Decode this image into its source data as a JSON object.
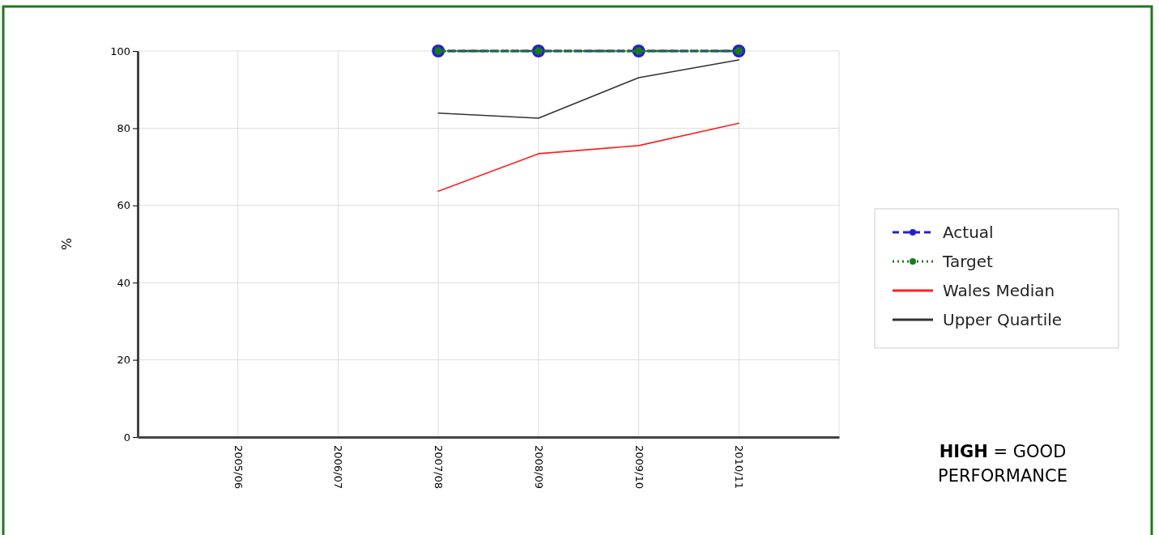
{
  "chart_data": {
    "type": "line",
    "ylabel": "%",
    "categories": [
      "2005/06",
      "2006/07",
      "2007/08",
      "2008/09",
      "2009/10",
      "2010/11"
    ],
    "series": [
      {
        "name": "Actual",
        "color": "#2222cc",
        "values": [
          null,
          null,
          100,
          100,
          100,
          100
        ],
        "line_style": "dashed",
        "marker": "circle"
      },
      {
        "name": "Target",
        "color": "#1a7a1a",
        "values": [
          null,
          null,
          100,
          100,
          100,
          100
        ],
        "line_style": "dotted",
        "marker": "circle"
      },
      {
        "name": "Wales Median",
        "color": "#ff2020",
        "values": [
          null,
          null,
          63.7,
          73.4,
          75.5,
          81.3
        ],
        "line_style": "solid",
        "marker": "none"
      },
      {
        "name": "Upper Quartile",
        "color": "#333333",
        "values": [
          null,
          null,
          83.9,
          82.6,
          93.1,
          97.7
        ],
        "line_style": "solid",
        "marker": "none"
      }
    ],
    "ylim": [
      0,
      100
    ],
    "yticks": [
      0,
      20,
      40,
      60,
      80,
      100
    ],
    "grid": true,
    "legend": "right",
    "annotations": [
      "HIGH = GOOD PERFORMANCE"
    ]
  }
}
